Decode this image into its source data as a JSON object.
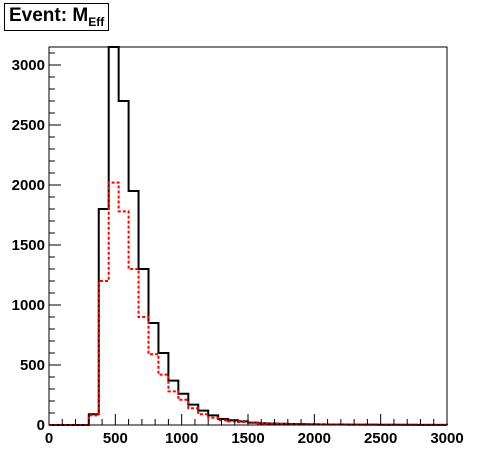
{
  "chart_data": {
    "type": "histogram",
    "title": "Event: M",
    "title_subscript": "Eff",
    "xlabel": "",
    "ylabel": "",
    "xlim": [
      0,
      3000
    ],
    "ylim": [
      0,
      3150
    ],
    "bin_width": 75,
    "x_ticks": [
      "0",
      "500",
      "1000",
      "1500",
      "2000",
      "2500",
      "3000"
    ],
    "y_ticks": [
      "0",
      "500",
      "1000",
      "1500",
      "2000",
      "2500",
      "3000"
    ],
    "x_tick_values": [
      0,
      500,
      1000,
      1500,
      2000,
      2500,
      3000
    ],
    "y_tick_values": [
      0,
      500,
      1000,
      1500,
      2000,
      2500,
      3000
    ],
    "grid": false,
    "series": [
      {
        "color": "#000000",
        "style": "solid",
        "values": [
          0,
          0,
          0,
          0,
          90,
          1800,
          3150,
          2700,
          1950,
          1300,
          850,
          600,
          370,
          260,
          170,
          120,
          80,
          50,
          40,
          30,
          20,
          15,
          12,
          10,
          8,
          7,
          6,
          5,
          4,
          4,
          3,
          3,
          3,
          2,
          2,
          2,
          2,
          1,
          1,
          1
        ]
      },
      {
        "color": "#ff0000",
        "style": "dashed",
        "values": [
          0,
          0,
          0,
          0,
          80,
          1200,
          2020,
          1780,
          1300,
          900,
          590,
          420,
          280,
          210,
          140,
          90,
          60,
          40,
          30,
          25,
          18,
          12,
          10,
          8,
          6,
          5,
          4,
          4,
          3,
          3,
          3,
          2,
          2,
          2,
          2,
          1,
          1,
          1,
          1,
          1
        ]
      }
    ]
  }
}
